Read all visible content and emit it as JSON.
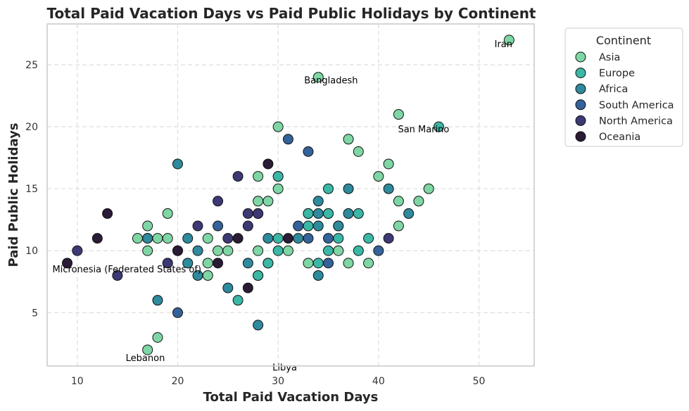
{
  "chart_data": {
    "type": "scatter",
    "title": "Total Paid Vacation Days vs Paid Public Holidays by Continent",
    "xlabel": "Total Paid Vacation Days",
    "ylabel": "Paid Public Holidays",
    "xlim": [
      7,
      55.5
    ],
    "ylim": [
      0.7,
      28.3
    ],
    "xticks": [
      10,
      20,
      30,
      40,
      50
    ],
    "yticks": [
      5,
      10,
      15,
      20,
      25
    ],
    "grid": true,
    "legend": {
      "title": "Continent",
      "placement": "outside-right"
    },
    "series": [
      {
        "name": "Asia",
        "color": "#7fd6a5",
        "points": [
          [
            53,
            27
          ],
          [
            34,
            24
          ],
          [
            42,
            21
          ],
          [
            30,
            20
          ],
          [
            37,
            19
          ],
          [
            38,
            18
          ],
          [
            41,
            17
          ],
          [
            28,
            16
          ],
          [
            30,
            16
          ],
          [
            40,
            16
          ],
          [
            30,
            15
          ],
          [
            45,
            15
          ],
          [
            28,
            14
          ],
          [
            29,
            14
          ],
          [
            42,
            14
          ],
          [
            44,
            14
          ],
          [
            19,
            13
          ],
          [
            33,
            13
          ],
          [
            35,
            13
          ],
          [
            17,
            12
          ],
          [
            42,
            12
          ],
          [
            16,
            11
          ],
          [
            18,
            11
          ],
          [
            19,
            11
          ],
          [
            23,
            11
          ],
          [
            20,
            10
          ],
          [
            17,
            10
          ],
          [
            24,
            10
          ],
          [
            25,
            10
          ],
          [
            28,
            10
          ],
          [
            31,
            10
          ],
          [
            36,
            10
          ],
          [
            23,
            9
          ],
          [
            29,
            9
          ],
          [
            33,
            9
          ],
          [
            37,
            9
          ],
          [
            39,
            9
          ],
          [
            23,
            8
          ],
          [
            28,
            8
          ],
          [
            18,
            3
          ],
          [
            17,
            2
          ]
        ]
      },
      {
        "name": "Europe",
        "color": "#3bb7a6",
        "points": [
          [
            46,
            20
          ],
          [
            30,
            16
          ],
          [
            35,
            15
          ],
          [
            33,
            13
          ],
          [
            35,
            13
          ],
          [
            38,
            13
          ],
          [
            33,
            12
          ],
          [
            36,
            12
          ],
          [
            17,
            11
          ],
          [
            30,
            11
          ],
          [
            36,
            11
          ],
          [
            39,
            11
          ],
          [
            30,
            10
          ],
          [
            35,
            10
          ],
          [
            38,
            10
          ],
          [
            29,
            9
          ],
          [
            34,
            9
          ],
          [
            28,
            8
          ],
          [
            26,
            6
          ]
        ]
      },
      {
        "name": "Africa",
        "color": "#2e8a9c",
        "points": [
          [
            20,
            17
          ],
          [
            34,
            14
          ],
          [
            37,
            15
          ],
          [
            41,
            15
          ],
          [
            28,
            13
          ],
          [
            34,
            13
          ],
          [
            37,
            13
          ],
          [
            43,
            13
          ],
          [
            34,
            12
          ],
          [
            36,
            12
          ],
          [
            17,
            11
          ],
          [
            21,
            11
          ],
          [
            29,
            11
          ],
          [
            32,
            11
          ],
          [
            22,
            10
          ],
          [
            21,
            9
          ],
          [
            27,
            9
          ],
          [
            22,
            8
          ],
          [
            34,
            8
          ],
          [
            25,
            7
          ],
          [
            18,
            6
          ],
          [
            28,
            4
          ]
        ]
      },
      {
        "name": "South America",
        "color": "#34629a",
        "points": [
          [
            31,
            19
          ],
          [
            33,
            18
          ],
          [
            24,
            12
          ],
          [
            32,
            12
          ],
          [
            33,
            11
          ],
          [
            35,
            11
          ],
          [
            40,
            10
          ],
          [
            35,
            9
          ],
          [
            20,
            5
          ]
        ]
      },
      {
        "name": "North America",
        "color": "#3d3975",
        "points": [
          [
            26,
            16
          ],
          [
            24,
            14
          ],
          [
            27,
            13
          ],
          [
            28,
            13
          ],
          [
            22,
            12
          ],
          [
            27,
            12
          ],
          [
            25,
            11
          ],
          [
            41,
            11
          ],
          [
            10,
            10
          ],
          [
            19,
            9
          ],
          [
            14,
            8
          ]
        ]
      },
      {
        "name": "Oceania",
        "color": "#2a1b36",
        "points": [
          [
            29,
            17
          ],
          [
            13,
            13
          ],
          [
            12,
            11
          ],
          [
            26,
            11
          ],
          [
            31,
            11
          ],
          [
            20,
            10
          ],
          [
            9,
            9
          ],
          [
            24,
            9
          ],
          [
            27,
            7
          ]
        ]
      }
    ],
    "annotations": [
      {
        "text": "Iran",
        "x": 53,
        "y": 27
      },
      {
        "text": "Bangladesh",
        "x": 34,
        "y": 24
      },
      {
        "text": "San Marino",
        "x": 46,
        "y": 20
      },
      {
        "text": "Micronesia (Federated States of)",
        "x": 9,
        "y": 9
      },
      {
        "text": "Lebanon",
        "x": 17,
        "y": 2
      },
      {
        "text": "Libya",
        "x": 30,
        "y": 1
      }
    ]
  }
}
